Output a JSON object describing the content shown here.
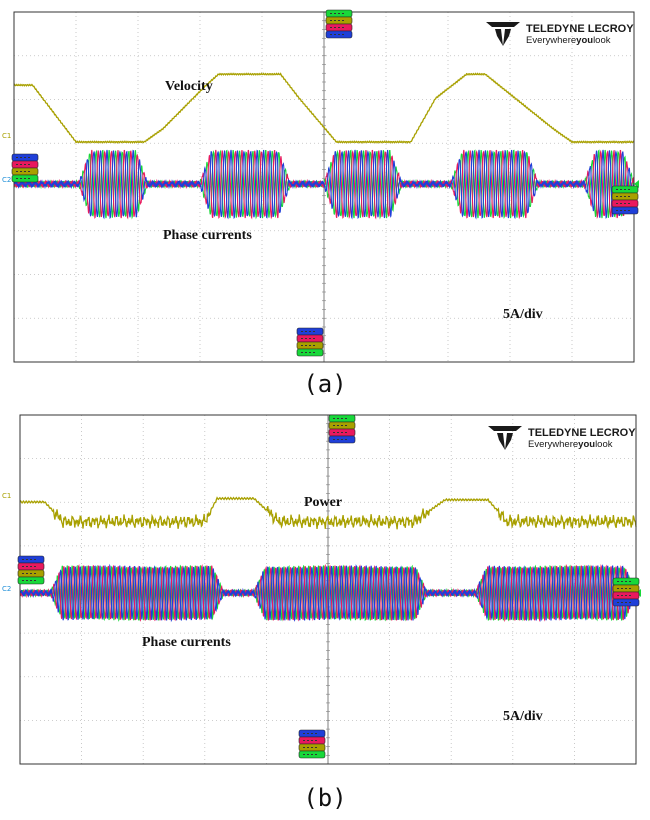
{
  "brand": {
    "name": "TELEDYNE LECROY",
    "tagline_pre": "Everywhere",
    "tagline_bold": "you",
    "tagline_post": "look",
    "logo_color": "#1a1a1a"
  },
  "colors": {
    "grid": "#bdbdbd",
    "border": "#333333",
    "velocity": "#a8a000",
    "power": "#a8a000",
    "phase_a": "#1f3fd8",
    "phase_b": "#e8195e",
    "phase_c": "#18d83a",
    "trigger_cursor": "#7f7f7f"
  },
  "chart_data": [
    {
      "type": "line",
      "caption": "(a)",
      "annotations": [
        "Velocity",
        "Phase currents",
        "5A/div"
      ],
      "channel_labels": [
        "C1",
        "C2"
      ],
      "grid": true,
      "x_divisions": 10,
      "y_divisions": 8,
      "series": [
        {
          "name": "Velocity",
          "channel": "C1",
          "unit": "div",
          "x": [
            0,
            0.3,
            1.0,
            2.1,
            2.4,
            3.1,
            3.3,
            4.3,
            4.6,
            5.2,
            6.4,
            6.8,
            7.3,
            7.6,
            8.7,
            9.0,
            10.0
          ],
          "y": [
            1.3,
            1.3,
            0.0,
            0.0,
            0.3,
            1.3,
            1.55,
            1.55,
            1.0,
            0.0,
            0.0,
            1.0,
            1.55,
            1.55,
            0.3,
            0.0,
            0.0
          ]
        },
        {
          "name": "Phase currents",
          "channel": "C2",
          "unit": "A",
          "scale": "5A/div",
          "phases": 3,
          "bursts": [
            [
              1.05,
              2.15
            ],
            [
              3.0,
              4.45
            ],
            [
              5.0,
              6.25
            ],
            [
              7.05,
              8.45
            ],
            [
              9.2,
              10.0
            ]
          ],
          "peak_amplitude_div": 0.75,
          "idle_amplitude_div": 0.04
        }
      ]
    },
    {
      "type": "line",
      "caption": "(b)",
      "annotations": [
        "Power",
        "Phase currents",
        "5A/div"
      ],
      "channel_labels": [
        "C1",
        "C2"
      ],
      "grid": true,
      "x_divisions": 10,
      "y_divisions": 8,
      "series": [
        {
          "name": "Power",
          "channel": "C1",
          "unit": "div",
          "x": [
            0,
            0.4,
            0.7,
            3.0,
            3.2,
            3.8,
            4.2,
            6.4,
            6.9,
            7.6,
            7.9,
            10.0
          ],
          "y": [
            0.0,
            0.0,
            -0.45,
            -0.45,
            0.08,
            0.08,
            -0.45,
            -0.45,
            0.05,
            0.05,
            -0.45,
            -0.45
          ],
          "noise_div": 0.12
        },
        {
          "name": "Phase currents",
          "channel": "C2",
          "unit": "A",
          "scale": "5A/div",
          "phases": 3,
          "bursts": [
            [
              0.5,
              3.3
            ],
            [
              3.8,
              6.6
            ],
            [
              7.4,
              10.0
            ]
          ],
          "peak_amplitude_div": 0.6,
          "idle_amplitude_div": 0.04
        }
      ]
    }
  ]
}
